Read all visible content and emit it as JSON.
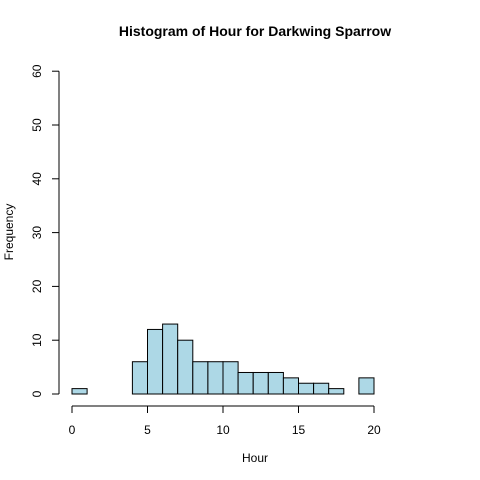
{
  "chart_data": {
    "type": "bar",
    "title": "Histogram of Hour for Darkwing Sparrow",
    "xlabel": "Hour",
    "ylabel": "Frequency",
    "bar_color": "#add8e6",
    "xlim": [
      0,
      24
    ],
    "ylim": [
      0,
      60
    ],
    "x_ticks": [
      0,
      5,
      10,
      15,
      20
    ],
    "y_ticks": [
      0,
      10,
      20,
      30,
      40,
      50,
      60
    ],
    "bins": [
      {
        "start": 0,
        "end": 1,
        "count": 1
      },
      {
        "start": 1,
        "end": 2,
        "count": 0
      },
      {
        "start": 2,
        "end": 3,
        "count": 0
      },
      {
        "start": 3,
        "end": 4,
        "count": 0
      },
      {
        "start": 4,
        "end": 5,
        "count": 6
      },
      {
        "start": 5,
        "end": 6,
        "count": 12
      },
      {
        "start": 6,
        "end": 7,
        "count": 13
      },
      {
        "start": 7,
        "end": 8,
        "count": 10
      },
      {
        "start": 8,
        "end": 9,
        "count": 6
      },
      {
        "start": 9,
        "end": 10,
        "count": 6
      },
      {
        "start": 10,
        "end": 11,
        "count": 6
      },
      {
        "start": 11,
        "end": 12,
        "count": 4
      },
      {
        "start": 12,
        "end": 13,
        "count": 4
      },
      {
        "start": 13,
        "end": 14,
        "count": 4
      },
      {
        "start": 14,
        "end": 15,
        "count": 3
      },
      {
        "start": 15,
        "end": 16,
        "count": 2
      },
      {
        "start": 16,
        "end": 17,
        "count": 2
      },
      {
        "start": 17,
        "end": 18,
        "count": 1
      },
      {
        "start": 18,
        "end": 19,
        "count": 0
      },
      {
        "start": 19,
        "end": 20,
        "count": 3
      }
    ],
    "grid": false
  }
}
